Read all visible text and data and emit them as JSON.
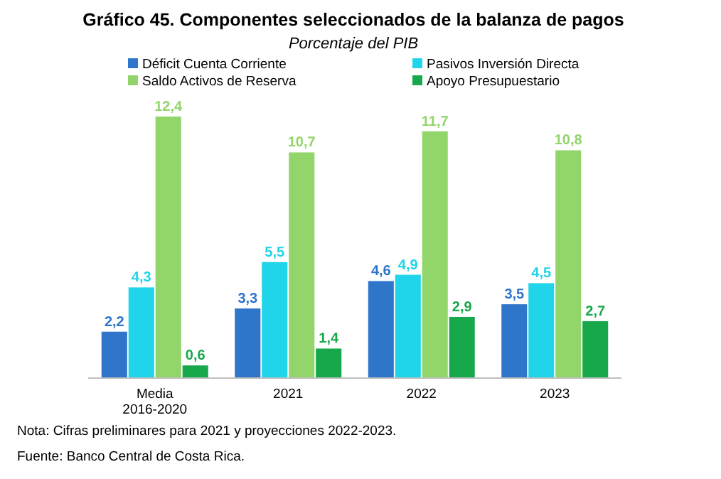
{
  "chart_data": {
    "type": "bar",
    "title": "Gráfico 45. Componentes seleccionados de la balanza de pagos",
    "subtitle": "Porcentaje del PIB",
    "categories": [
      "Media\n2016-2020",
      "2021",
      "2022",
      "2023"
    ],
    "series": [
      {
        "name": "Déficit Cuenta Corriente",
        "color": "#2f75c9",
        "values": [
          2.2,
          3.3,
          4.6,
          3.5
        ],
        "value_labels": [
          "2,2",
          "3,3",
          "4,6",
          "3,5"
        ]
      },
      {
        "name": "Pasivos Inversión Directa",
        "color": "#20d4ea",
        "values": [
          4.3,
          5.5,
          4.9,
          4.5
        ],
        "value_labels": [
          "4,3",
          "5,5",
          "4,9",
          "4,5"
        ]
      },
      {
        "name": "Saldo Activos de Reserva",
        "color": "#92d56b",
        "values": [
          12.4,
          10.7,
          11.7,
          10.8
        ],
        "value_labels": [
          "12,4",
          "10,7",
          "11,7",
          "10,8"
        ]
      },
      {
        "name": "Apoyo Presupuestario",
        "color": "#18a84c",
        "values": [
          0.6,
          1.4,
          2.9,
          2.7
        ],
        "value_labels": [
          "0,6",
          "1,4",
          "2,9",
          "2,7"
        ]
      }
    ],
    "legend": "top",
    "grid": false,
    "annotations": [
      "Nota: Cifras preliminares para 2021 y proyecciones 2022-2023.",
      "Fuente: Banco Central de Costa Rica."
    ]
  }
}
